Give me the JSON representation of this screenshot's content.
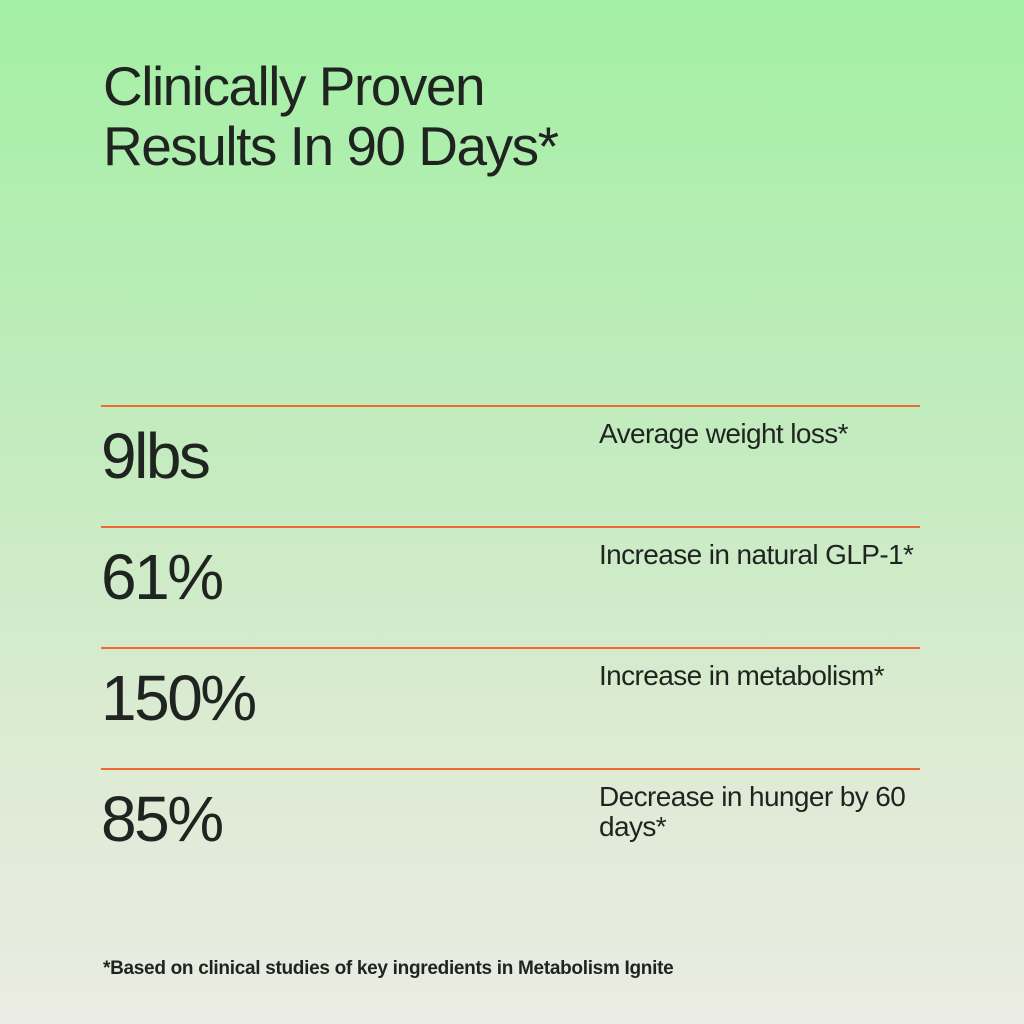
{
  "headline": {
    "line1": "Clinically Proven",
    "line2": "Results In 90 Days*"
  },
  "stats": [
    {
      "value": "9lbs",
      "label": "Average weight loss*"
    },
    {
      "value": "61%",
      "label": "Increase in natural GLP-1*"
    },
    {
      "value": "150%",
      "label": "Increase in metabolism*"
    },
    {
      "value": "85%",
      "label": "Decrease in hunger by 60 days*"
    }
  ],
  "footnote": "*Based on clinical studies of key ingredients in Metabolism Ignite",
  "colors": {
    "accent_divider": "#ef6a32",
    "text": "#1f2420",
    "background_top": "#a3f0a4",
    "background_bottom": "#ebebe3"
  }
}
